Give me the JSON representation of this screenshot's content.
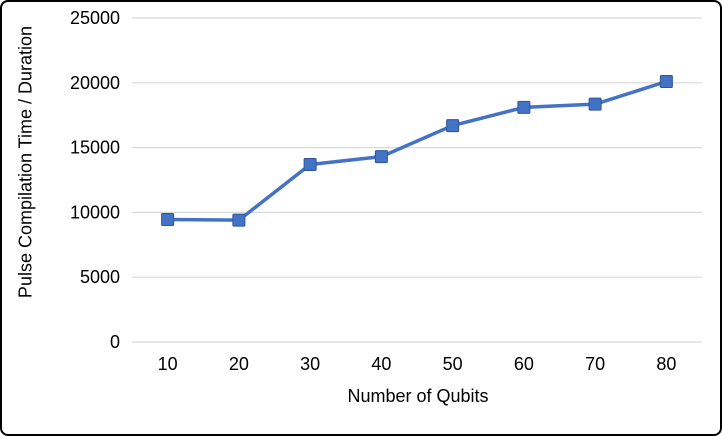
{
  "frame": {
    "background": "#FFFFFF",
    "border_color": "#000000"
  },
  "chart_data": {
    "type": "line",
    "title": "",
    "xlabel": "Number of Qubits",
    "ylabel": "Pulse Compilation Time / Duration",
    "x": [
      10,
      20,
      30,
      40,
      50,
      60,
      70,
      80
    ],
    "values": [
      9450,
      9400,
      13700,
      14300,
      16700,
      18100,
      18350,
      20100
    ],
    "ylim": [
      0,
      25000
    ],
    "yticks": [
      0,
      5000,
      10000,
      15000,
      20000,
      25000
    ],
    "grid": true,
    "legend": "none",
    "line_color": "#4472C4",
    "marker": "square",
    "marker_color": "#4472C4",
    "marker_edge_color": "#2F5597",
    "grid_color": "#D9D9D9",
    "text_color": "#000000"
  }
}
